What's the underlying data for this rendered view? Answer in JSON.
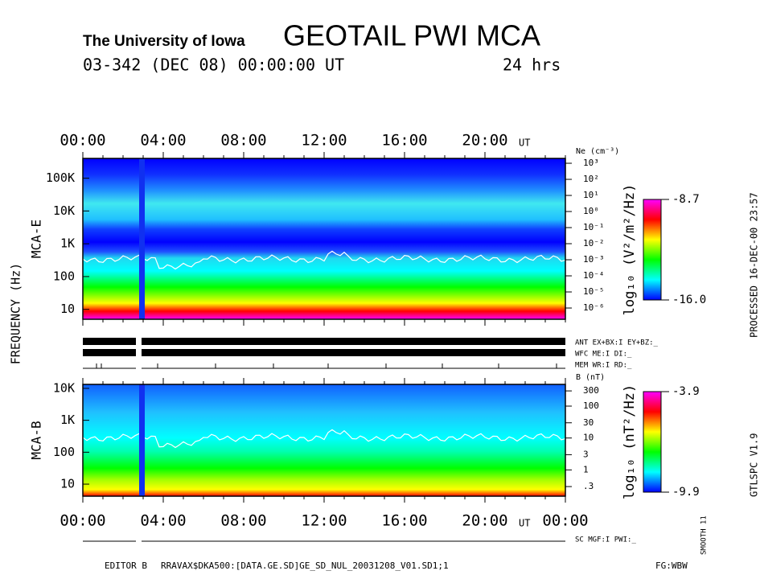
{
  "header": {
    "institution": "The University of Iowa",
    "title": "GEOTAIL PWI MCA",
    "date": "03-342 (DEC 08) 00:00:00 UT",
    "span": "24 hrs"
  },
  "y_label": "FREQUENCY (Hz)",
  "colors": [
    "#0000ff",
    "#00ffff",
    "#00ff00",
    "#ffff00",
    "#ff0000",
    "#ff00ff"
  ],
  "chart_data": [
    {
      "type": "spectrogram",
      "label": "MCA-E",
      "x_unit": "UT",
      "xlim": [
        0,
        24
      ],
      "xticks": [
        {
          "value": 0,
          "label": "00:00"
        },
        {
          "value": 4,
          "label": "04:00"
        },
        {
          "value": 8,
          "label": "08:00"
        },
        {
          "value": 12,
          "label": "12:00"
        },
        {
          "value": 16,
          "label": "16:00"
        },
        {
          "value": 20,
          "label": "20:00"
        }
      ],
      "log_y": true,
      "ylim": [
        5,
        400000
      ],
      "yticks": [
        10,
        100,
        {
          "value": 1000,
          "label": "1K"
        },
        {
          "value": 10000,
          "label": "10K"
        },
        {
          "value": 100000,
          "label": "100K"
        }
      ],
      "y2_label": "Ne (cm⁻³)",
      "y2lim": [
        2e-07,
        2000
      ],
      "y2ticks": [
        {
          "value": 1000,
          "label": "10³"
        },
        {
          "value": 100,
          "label": "10²"
        },
        {
          "value": 10,
          "label": "10¹"
        },
        {
          "value": 1,
          "label": "10⁰"
        },
        {
          "value": 0.1,
          "label": "10⁻¹"
        },
        {
          "value": 0.01,
          "label": "10⁻²"
        },
        {
          "value": 0.001,
          "label": "10⁻³"
        },
        {
          "value": 0.0001,
          "label": "10⁻⁴"
        },
        {
          "value": 1e-05,
          "label": "10⁻⁵"
        },
        {
          "value": 1e-06,
          "label": "10⁻⁶"
        }
      ],
      "colorbar_label": "log₁₀ (V²/m²/Hz)",
      "clim": [
        -16,
        -8.7
      ],
      "cticks": [
        {
          "value": -16,
          "label": "-16.0"
        },
        -8.7
      ]
    },
    {
      "type": "spectrogram",
      "label": "MCA-B",
      "x_unit": "UT",
      "xlim": [
        0,
        24
      ],
      "xticks": [
        {
          "value": 0,
          "label": "00:00"
        },
        {
          "value": 4,
          "label": "04:00"
        },
        {
          "value": 8,
          "label": "08:00"
        },
        {
          "value": 12,
          "label": "12:00"
        },
        {
          "value": 16,
          "label": "16:00"
        },
        {
          "value": 20,
          "label": "20:00"
        },
        {
          "value": 24,
          "label": "00:00"
        }
      ],
      "log_y": true,
      "ylim": [
        4.2,
        13300
      ],
      "yticks": [
        10,
        100,
        {
          "value": 1000,
          "label": "1K"
        },
        {
          "value": 10000,
          "label": "10K"
        }
      ],
      "y2_label": "B (nT)",
      "y2lim": [
        0.15,
        480
      ],
      "y2ticks": [
        300,
        100,
        30,
        10,
        3,
        1,
        {
          "value": 0.3,
          "label": ".3"
        }
      ],
      "colorbar_label": "log₁₀ (nT²/Hz)",
      "clim": [
        -9.9,
        -3.9
      ],
      "cticks": [
        -9.9,
        -3.9
      ]
    }
  ],
  "status": [
    "ANT EX+BX:I  EY+BZ:_",
    "WFC ME:I    DI:_",
    "MEM WR:I    RD:_"
  ],
  "footer": {
    "sc": "SC MGF:I    PWI:_",
    "editor": "EDITOR B",
    "file": "RRAVAX$DKA500:[DATA.GE.SD]GE_SD_NUL_20031208_V01.SD1;1",
    "fg": "FG:WBW"
  },
  "side": {
    "processed": "PROCESSED 16-DEC-00  23:57",
    "version": "GTLSPC   V1.9",
    "smooth": "SMOOTH 11"
  }
}
